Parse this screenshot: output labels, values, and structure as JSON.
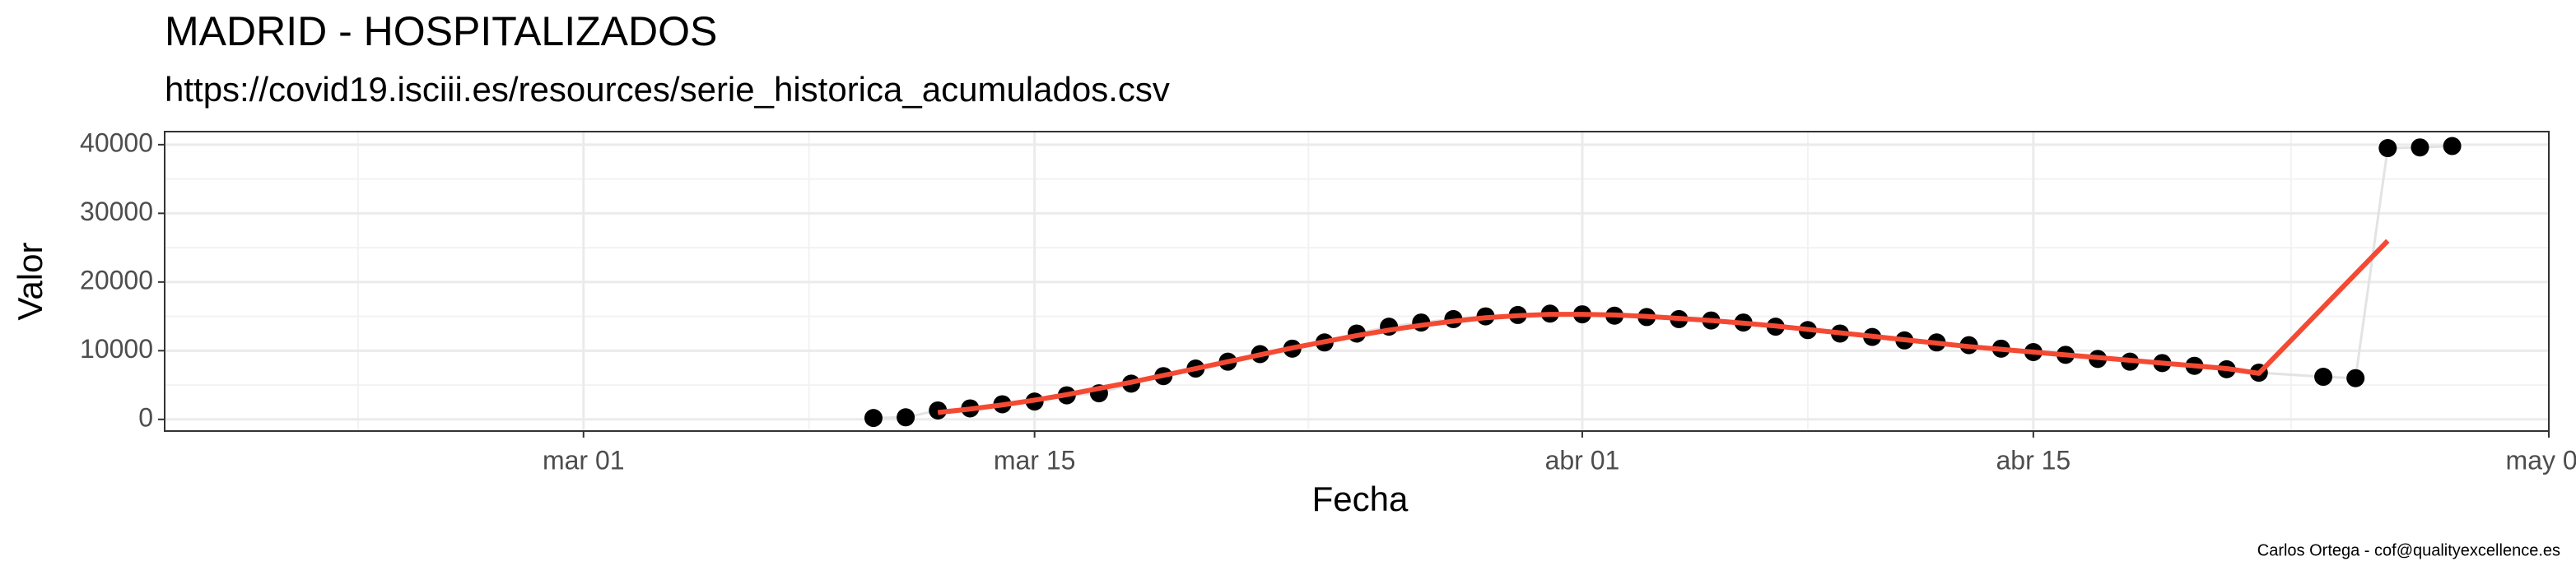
{
  "chart_data": {
    "type": "scatter-line",
    "title": "MADRID - HOSPITALIZADOS",
    "subtitle": "https://covid19.isciii.es/resources/serie_historica_acumulados.csv",
    "x_label": "Fecha",
    "y_label": "Valor",
    "caption": "Carlos Ortega - cof@qualityexcellence.es",
    "xlim": [
      "02-17",
      "05-01"
    ],
    "xticks": [
      {
        "value": "03-01",
        "label": "mar 01"
      },
      {
        "value": "03-15",
        "label": "mar 15"
      },
      {
        "value": "04-01",
        "label": "abr 01"
      },
      {
        "value": "04-15",
        "label": "abr 15"
      },
      {
        "value": "05-01",
        "label": "may 01"
      }
    ],
    "ylim": [
      -1700,
      41900
    ],
    "yticks": [
      0,
      10000,
      20000,
      30000,
      40000
    ],
    "grid": true,
    "series": [
      {
        "mark": "points",
        "color": "#000000",
        "line_color": "#e3e3e3",
        "x": [
          "03-10",
          "03-11",
          "03-12",
          "03-13",
          "03-14",
          "03-15",
          "03-16",
          "03-17",
          "03-18",
          "03-19",
          "03-20",
          "03-21",
          "03-22",
          "03-23",
          "03-24",
          "03-25",
          "03-26",
          "03-27",
          "03-28",
          "03-29",
          "03-30",
          "03-31",
          "04-01",
          "04-02",
          "04-03",
          "04-04",
          "04-05",
          "04-06",
          "04-07",
          "04-08",
          "04-09",
          "04-10",
          "04-11",
          "04-12",
          "04-13",
          "04-14",
          "04-15",
          "04-16",
          "04-17",
          "04-18",
          "04-19",
          "04-20",
          "04-21",
          "04-22",
          "04-24",
          "04-25",
          "04-26",
          "04-27",
          "04-28"
        ],
        "values": [
          200,
          300,
          1300,
          1600,
          2200,
          2600,
          3500,
          3800,
          5200,
          6300,
          7400,
          8400,
          9500,
          10300,
          11200,
          12500,
          13500,
          14100,
          14600,
          15000,
          15200,
          15400,
          15300,
          15100,
          14900,
          14600,
          14400,
          14100,
          13500,
          13000,
          12500,
          12000,
          11500,
          11200,
          10800,
          10300,
          9800,
          9400,
          8800,
          8400,
          8200,
          7800,
          7300,
          6800,
          6200,
          6000,
          39500,
          39600,
          39800
        ]
      },
      {
        "mark": "line",
        "color": "#f44a33",
        "x": [
          "03-12",
          "03-13",
          "03-14",
          "03-15",
          "03-16",
          "03-17",
          "03-18",
          "03-19",
          "03-20",
          "03-21",
          "03-22",
          "03-23",
          "03-24",
          "03-25",
          "03-26",
          "03-27",
          "03-28",
          "03-29",
          "03-30",
          "03-31",
          "04-01",
          "04-02",
          "04-03",
          "04-04",
          "04-05",
          "04-06",
          "04-07",
          "04-08",
          "04-09",
          "04-10",
          "04-11",
          "04-12",
          "04-13",
          "04-14",
          "04-15",
          "04-16",
          "04-17",
          "04-18",
          "04-19",
          "04-20",
          "04-21",
          "04-22",
          "04-26"
        ],
        "values": [
          1000,
          1500,
          2100,
          2800,
          3600,
          4500,
          5400,
          6400,
          7400,
          8400,
          9400,
          10400,
          11300,
          12200,
          13000,
          13700,
          14300,
          14800,
          15100,
          15300,
          15300,
          15200,
          15000,
          14700,
          14400,
          14000,
          13600,
          13100,
          12600,
          12100,
          11600,
          11100,
          10600,
          10200,
          9800,
          9400,
          9000,
          8600,
          8200,
          7800,
          7400,
          6700,
          26000
        ]
      }
    ]
  }
}
